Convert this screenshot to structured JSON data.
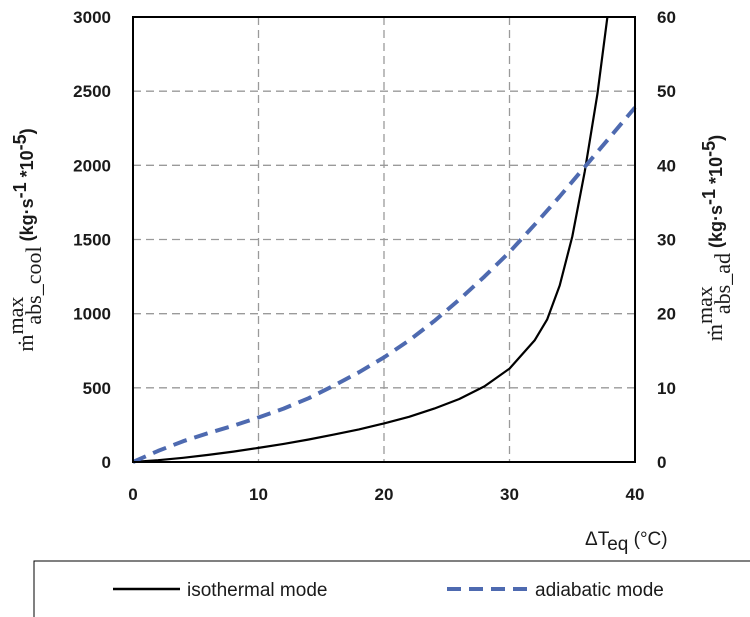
{
  "chart_data": {
    "type": "line",
    "xlabel": "ΔT",
    "xlabel_sub": "eq",
    "xlabel_unit": " (°C)",
    "ylabel_left": {
      "symbol": "ṁ",
      "sup": "max",
      "sub": "abs_cool",
      "unit": " (kg·s",
      "unit_exp1": "-1",
      "unit_mid": " *10",
      "unit_exp2": "-5",
      "unit_end": ")"
    },
    "ylabel_right": {
      "symbol": "ṁ",
      "sup": "max",
      "sub": "abs_ad",
      "unit": " (kg·s",
      "unit_exp1": "-1",
      "unit_mid": " *10",
      "unit_exp2": "-5",
      "unit_end": ")"
    },
    "xlim": [
      0,
      40
    ],
    "ylim_left": [
      0,
      3000
    ],
    "ylim_right": [
      0,
      60
    ],
    "x_ticks": [
      "0",
      "10",
      "20",
      "30",
      "40"
    ],
    "y_ticks_left": [
      "0",
      "500",
      "1000",
      "1500",
      "2000",
      "2500",
      "3000"
    ],
    "y_ticks_right": [
      "0",
      "10",
      "20",
      "30",
      "40",
      "50",
      "60"
    ],
    "grid": true,
    "legend_position": "bottom",
    "series": [
      {
        "name": "isothermal mode",
        "axis": "left",
        "style": "solid",
        "color": "#000000",
        "points": [
          [
            0,
            0
          ],
          [
            2,
            12
          ],
          [
            4,
            28
          ],
          [
            6,
            48
          ],
          [
            8,
            70
          ],
          [
            10,
            95
          ],
          [
            12,
            122
          ],
          [
            14,
            152
          ],
          [
            16,
            185
          ],
          [
            18,
            220
          ],
          [
            20,
            260
          ],
          [
            22,
            305
          ],
          [
            24,
            360
          ],
          [
            26,
            425
          ],
          [
            28,
            510
          ],
          [
            30,
            630
          ],
          [
            32,
            820
          ],
          [
            33,
            960
          ],
          [
            34,
            1190
          ],
          [
            35,
            1520
          ],
          [
            36,
            1960
          ],
          [
            37,
            2480
          ],
          [
            37.8,
            3000
          ]
        ]
      },
      {
        "name": "adiabatic mode",
        "axis": "right",
        "style": "dashed",
        "color": "#4e6ab0",
        "points": [
          [
            0,
            0
          ],
          [
            2,
            1.5
          ],
          [
            4,
            2.8
          ],
          [
            6,
            3.9
          ],
          [
            8,
            4.9
          ],
          [
            10,
            6.0
          ],
          [
            12,
            7.2
          ],
          [
            14,
            8.6
          ],
          [
            16,
            10.3
          ],
          [
            18,
            12.1
          ],
          [
            20,
            14.1
          ],
          [
            22,
            16.4
          ],
          [
            24,
            19.0
          ],
          [
            26,
            21.9
          ],
          [
            28,
            25.0
          ],
          [
            30,
            28.3
          ],
          [
            32,
            32.0
          ],
          [
            34,
            35.8
          ],
          [
            36,
            39.8
          ],
          [
            38,
            43.8
          ],
          [
            40,
            47.8
          ]
        ]
      }
    ]
  }
}
